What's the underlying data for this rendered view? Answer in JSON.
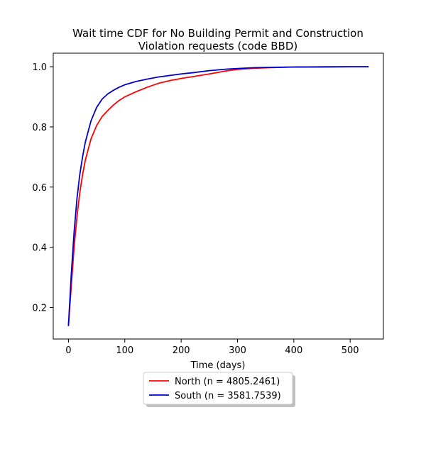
{
  "chart_data": {
    "type": "line",
    "title_lines": [
      "Wait time CDF for No Building Permit and Construction",
      "Violation  requests (code BBD)"
    ],
    "xlabel": "Time (days)",
    "ylabel": "",
    "xlim": [
      -27,
      559
    ],
    "ylim": [
      0.095,
      1.045
    ],
    "xticks": [
      0,
      100,
      200,
      300,
      400,
      500
    ],
    "yticks": [
      0.2,
      0.4,
      0.6,
      0.8,
      1.0
    ],
    "xtick_labels": [
      "0",
      "100",
      "200",
      "300",
      "400",
      "500"
    ],
    "ytick_labels": [
      "0.2",
      "0.4",
      "0.6",
      "0.8",
      "1.0"
    ],
    "grid": false,
    "legend_placement": "below-center",
    "series": [
      {
        "name": "North (n = 4805.2461)",
        "color": "#ff0000",
        "x": [
          0,
          5,
          10,
          15,
          20,
          25,
          30,
          40,
          50,
          60,
          70,
          80,
          90,
          100,
          120,
          140,
          160,
          180,
          200,
          220,
          250,
          280,
          300,
          330,
          360,
          400,
          450,
          500,
          532
        ],
        "y": [
          0.14,
          0.27,
          0.4,
          0.5,
          0.58,
          0.64,
          0.69,
          0.76,
          0.805,
          0.835,
          0.855,
          0.873,
          0.888,
          0.9,
          0.917,
          0.932,
          0.945,
          0.954,
          0.961,
          0.967,
          0.976,
          0.986,
          0.991,
          0.995,
          0.997,
          0.999,
          0.9995,
          1.0,
          1.0
        ]
      },
      {
        "name": "South (n = 3581.7539)",
        "color": "#0000cc",
        "x": [
          0,
          5,
          10,
          15,
          20,
          25,
          30,
          40,
          50,
          60,
          70,
          80,
          90,
          100,
          120,
          140,
          160,
          180,
          200,
          220,
          250,
          280,
          300,
          330,
          360,
          400,
          450,
          500,
          532
        ],
        "y": [
          0.14,
          0.31,
          0.45,
          0.56,
          0.64,
          0.7,
          0.75,
          0.82,
          0.865,
          0.893,
          0.91,
          0.922,
          0.932,
          0.94,
          0.951,
          0.959,
          0.966,
          0.971,
          0.976,
          0.98,
          0.987,
          0.992,
          0.994,
          0.997,
          0.998,
          0.999,
          0.9995,
          1.0,
          1.0
        ]
      }
    ]
  }
}
